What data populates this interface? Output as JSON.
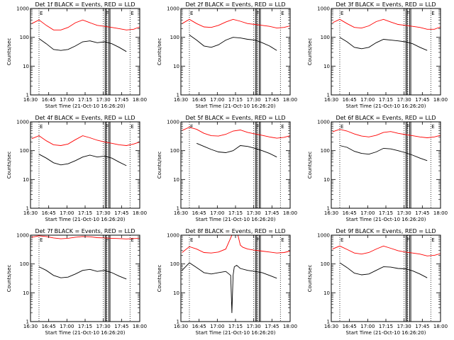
{
  "chart_data": [
    {
      "type": "line",
      "title": "Det 1f BLACK = Events, RED = LLD",
      "xlabel": "Start Time (21-Oct-10 16:26:20)",
      "ylabel": "Counts/sec",
      "yscale": "log",
      "ylim": [
        1,
        1000
      ],
      "xlim": [
        "16:30",
        "18:00"
      ],
      "x_ticks": [
        "16:30",
        "16:45",
        "17:00",
        "17:15",
        "17:30",
        "17:45",
        "18:00"
      ],
      "y_ticks": [
        "1",
        "10",
        "100",
        "1000"
      ],
      "flags": [
        "E",
        "F",
        "E"
      ],
      "series": [
        {
          "color": "#ff0000",
          "x": [
            "16:31",
            "16:37",
            "16:43",
            "16:49",
            "16:55",
            "17:01",
            "17:07",
            "17:13",
            "17:19",
            "17:25",
            "17:31",
            "17:37",
            "17:43",
            "17:49",
            "17:55",
            "18:00"
          ],
          "values": [
            300,
            400,
            260,
            180,
            180,
            220,
            320,
            400,
            320,
            260,
            240,
            220,
            200,
            180,
            190,
            230
          ]
        },
        {
          "color": "#000000",
          "x": [
            "16:37",
            "16:43",
            "16:49",
            "16:55",
            "17:01",
            "17:07",
            "17:13",
            "17:19",
            "17:25",
            "17:31",
            "17:37",
            "17:43",
            "17:49"
          ],
          "values": [
            90,
            60,
            38,
            35,
            38,
            50,
            70,
            75,
            65,
            70,
            60,
            45,
            32
          ]
        }
      ]
    },
    {
      "type": "line",
      "title": "Det 2f BLACK = Events, RED = LLD",
      "xlabel": "Start Time (21-Oct-10 16:26:20)",
      "ylabel": "Counts/sec",
      "yscale": "log",
      "ylim": [
        1,
        1000
      ],
      "xlim": [
        "16:30",
        "18:00"
      ],
      "x_ticks": [
        "16:30",
        "16:45",
        "17:00",
        "17:15",
        "17:30",
        "17:45",
        "18:00"
      ],
      "y_ticks": [
        "1",
        "10",
        "100",
        "1000"
      ],
      "flags": [
        "E",
        "F",
        "E"
      ],
      "series": [
        {
          "color": "#ff0000",
          "x": [
            "16:31",
            "16:37",
            "16:43",
            "16:49",
            "16:55",
            "17:01",
            "17:07",
            "17:13",
            "17:19",
            "17:25",
            "17:31",
            "17:37",
            "17:43",
            "17:49",
            "17:55",
            "18:00"
          ],
          "values": [
            300,
            420,
            300,
            230,
            220,
            260,
            340,
            420,
            360,
            300,
            280,
            260,
            240,
            210,
            220,
            250
          ]
        },
        {
          "color": "#000000",
          "x": [
            "16:37",
            "16:43",
            "16:49",
            "16:55",
            "17:01",
            "17:07",
            "17:13",
            "17:19",
            "17:25",
            "17:31",
            "17:37",
            "17:43",
            "17:49"
          ],
          "values": [
            120,
            80,
            50,
            45,
            55,
            80,
            100,
            95,
            85,
            80,
            65,
            50,
            35
          ]
        }
      ]
    },
    {
      "type": "line",
      "title": "Det 3f BLACK = Events, RED = LLD",
      "xlabel": "Start Time (21-Oct-10 16:26:20)",
      "ylabel": "Counts/sec",
      "yscale": "log",
      "ylim": [
        1,
        1000
      ],
      "xlim": [
        "16:30",
        "18:00"
      ],
      "x_ticks": [
        "16:30",
        "16:45",
        "17:00",
        "17:15",
        "17:30",
        "17:45",
        "18:00"
      ],
      "y_ticks": [
        "1",
        "10",
        "100",
        "1000"
      ],
      "flags": [
        "E",
        "F",
        "E"
      ],
      "series": [
        {
          "color": "#ff0000",
          "x": [
            "16:31",
            "16:37",
            "16:43",
            "16:49",
            "16:55",
            "17:01",
            "17:07",
            "17:13",
            "17:19",
            "17:25",
            "17:31",
            "17:37",
            "17:43",
            "17:49",
            "17:55",
            "18:00"
          ],
          "values": [
            320,
            420,
            300,
            220,
            210,
            250,
            350,
            420,
            340,
            280,
            260,
            240,
            220,
            190,
            190,
            230
          ]
        },
        {
          "color": "#000000",
          "x": [
            "16:37",
            "16:43",
            "16:49",
            "16:55",
            "17:01",
            "17:07",
            "17:13",
            "17:19",
            "17:25",
            "17:31",
            "17:37",
            "17:43",
            "17:49"
          ],
          "values": [
            100,
            70,
            45,
            40,
            45,
            65,
            85,
            80,
            75,
            70,
            60,
            45,
            35
          ]
        }
      ]
    },
    {
      "type": "line",
      "title": "Det 4f BLACK = Events, RED = LLD",
      "xlabel": "Start Time (21-Oct-10 16:26:20)",
      "ylabel": "Counts/sec",
      "yscale": "log",
      "ylim": [
        1,
        1000
      ],
      "xlim": [
        "16:30",
        "18:00"
      ],
      "x_ticks": [
        "16:30",
        "16:45",
        "17:00",
        "17:15",
        "17:30",
        "17:45",
        "18:00"
      ],
      "y_ticks": [
        "1",
        "10",
        "100",
        "1000"
      ],
      "flags": [
        "E",
        "F",
        "E"
      ],
      "series": [
        {
          "color": "#ff0000",
          "x": [
            "16:31",
            "16:37",
            "16:43",
            "16:49",
            "16:55",
            "17:01",
            "17:07",
            "17:13",
            "17:19",
            "17:25",
            "17:31",
            "17:37",
            "17:43",
            "17:49",
            "17:55",
            "18:00"
          ],
          "values": [
            260,
            330,
            220,
            160,
            150,
            170,
            240,
            330,
            280,
            230,
            200,
            180,
            160,
            150,
            170,
            200
          ]
        },
        {
          "color": "#000000",
          "x": [
            "16:37",
            "16:43",
            "16:49",
            "16:55",
            "17:01",
            "17:07",
            "17:13",
            "17:19",
            "17:25",
            "17:31",
            "17:37",
            "17:43",
            "17:49"
          ],
          "values": [
            75,
            55,
            38,
            32,
            35,
            45,
            60,
            70,
            60,
            65,
            55,
            40,
            30
          ]
        }
      ]
    },
    {
      "type": "line",
      "title": "Det 5f BLACK = Events, RED = LLD",
      "xlabel": "Start Time (21-Oct-10 16:26:20)",
      "ylabel": "Counts/sec",
      "yscale": "log",
      "ylim": [
        1,
        1000
      ],
      "xlim": [
        "16:30",
        "18:00"
      ],
      "x_ticks": [
        "16:30",
        "16:45",
        "17:00",
        "17:15",
        "17:30",
        "17:45",
        "18:00"
      ],
      "y_ticks": [
        "1",
        "10",
        "100",
        "1000"
      ],
      "flags": [
        "E",
        "F",
        "E"
      ],
      "series": [
        {
          "color": "#ff0000",
          "x": [
            "16:31",
            "16:37",
            "16:43",
            "16:49",
            "16:55",
            "17:01",
            "17:07",
            "17:13",
            "17:19",
            "17:25",
            "17:31",
            "17:37",
            "17:43",
            "17:49",
            "17:55",
            "18:00"
          ],
          "values": [
            500,
            650,
            550,
            400,
            330,
            320,
            370,
            480,
            520,
            430,
            380,
            340,
            300,
            270,
            290,
            330
          ]
        },
        {
          "color": "#000000",
          "x": [
            "16:43",
            "16:49",
            "16:55",
            "17:01",
            "17:07",
            "17:13",
            "17:19",
            "17:25",
            "17:31",
            "17:37",
            "17:43",
            "17:49"
          ],
          "values": [
            180,
            140,
            110,
            90,
            85,
            100,
            150,
            140,
            120,
            100,
            80,
            60
          ]
        }
      ]
    },
    {
      "type": "line",
      "title": "Det 6f BLACK = Events, RED = LLD",
      "xlabel": "Start Time (21-Oct-10 16:26:20)",
      "ylabel": "Counts/sec",
      "yscale": "log",
      "ylim": [
        1,
        1000
      ],
      "xlim": [
        "16:30",
        "18:00"
      ],
      "x_ticks": [
        "16:30",
        "16:45",
        "17:00",
        "17:15",
        "17:30",
        "17:45",
        "18:00"
      ],
      "y_ticks": [
        "1",
        "10",
        "100",
        "1000"
      ],
      "flags": [
        "E",
        "F",
        "E"
      ],
      "series": [
        {
          "color": "#ff0000",
          "x": [
            "16:31",
            "16:37",
            "16:43",
            "16:49",
            "16:55",
            "17:01",
            "17:07",
            "17:13",
            "17:19",
            "17:25",
            "17:31",
            "17:37",
            "17:43",
            "17:49",
            "17:55",
            "18:00"
          ],
          "values": [
            450,
            550,
            480,
            380,
            320,
            300,
            340,
            430,
            460,
            400,
            360,
            330,
            300,
            280,
            300,
            340
          ]
        },
        {
          "color": "#000000",
          "x": [
            "16:37",
            "16:43",
            "16:49",
            "16:55",
            "17:01",
            "17:07",
            "17:13",
            "17:19",
            "17:25",
            "17:31",
            "17:37",
            "17:43",
            "17:49"
          ],
          "values": [
            150,
            130,
            95,
            80,
            75,
            90,
            120,
            115,
            100,
            85,
            70,
            55,
            45
          ]
        }
      ]
    },
    {
      "type": "line",
      "title": "Det 7f BLACK = Events, RED = LLD",
      "xlabel": "Start Time (21-Oct-10 16:26:20)",
      "ylabel": "Counts/sec",
      "yscale": "log",
      "ylim": [
        1,
        1000
      ],
      "xlim": [
        "16:30",
        "18:00"
      ],
      "x_ticks": [
        "16:30",
        "16:45",
        "17:00",
        "17:15",
        "17:30",
        "17:45",
        "18:00"
      ],
      "y_ticks": [
        "1",
        "10",
        "100",
        "1000"
      ],
      "flags": [
        "E",
        "F",
        "E"
      ],
      "series": [
        {
          "color": "#ff0000",
          "x": [
            "16:31",
            "16:37",
            "16:43",
            "16:49",
            "16:55",
            "17:01",
            "17:07",
            "17:13",
            "17:19",
            "17:25",
            "17:31",
            "17:37",
            "17:43",
            "17:49",
            "17:55",
            "18:00"
          ],
          "values": [
            850,
            950,
            900,
            800,
            750,
            780,
            850,
            900,
            880,
            820,
            800,
            780,
            760,
            740,
            760,
            780
          ]
        },
        {
          "color": "#000000",
          "x": [
            "16:37",
            "16:43",
            "16:49",
            "16:55",
            "17:01",
            "17:07",
            "17:13",
            "17:19",
            "17:25",
            "17:31",
            "17:37",
            "17:43",
            "17:49"
          ],
          "values": [
            80,
            60,
            40,
            33,
            35,
            45,
            60,
            65,
            55,
            60,
            50,
            38,
            30
          ]
        }
      ]
    },
    {
      "type": "line",
      "title": "Det 8f BLACK = Events, RED = LLD",
      "xlabel": "Start Time (21-Oct-10 16:26:20)",
      "ylabel": "Counts/sec",
      "yscale": "log",
      "ylim": [
        1,
        1000
      ],
      "xlim": [
        "16:30",
        "18:00"
      ],
      "x_ticks": [
        "16:30",
        "16:45",
        "17:00",
        "17:15",
        "17:30",
        "17:45",
        "18:00"
      ],
      "y_ticks": [
        "1",
        "10",
        "100",
        "1000"
      ],
      "flags": [
        "E",
        "F",
        "E"
      ],
      "series": [
        {
          "color": "#ff0000",
          "x": [
            "16:31",
            "16:37",
            "16:43",
            "16:49",
            "16:55",
            "17:01",
            "17:07",
            "17:12",
            "17:14",
            "17:17",
            "17:19",
            "17:21",
            "17:25",
            "17:31",
            "17:37",
            "17:43",
            "17:49",
            "17:55",
            "18:00"
          ],
          "values": [
            250,
            400,
            330,
            250,
            240,
            260,
            330,
            1000,
            1000,
            1000,
            450,
            380,
            330,
            300,
            280,
            260,
            240,
            250,
            280
          ]
        },
        {
          "color": "#000000",
          "x": [
            "16:31",
            "16:37",
            "16:43",
            "16:49",
            "16:55",
            "17:01",
            "17:07",
            "17:11",
            "17:12",
            "17:13",
            "17:14",
            "17:16",
            "17:19",
            "17:25",
            "17:31",
            "17:37",
            "17:43",
            "17:49"
          ],
          "values": [
            60,
            110,
            75,
            50,
            45,
            50,
            55,
            40,
            2,
            40,
            80,
            90,
            70,
            60,
            55,
            50,
            40,
            32
          ]
        }
      ]
    },
    {
      "type": "line",
      "title": "Det 9f BLACK = Events, RED = LLD",
      "xlabel": "Start Time (21-Oct-10 16:26:20)",
      "ylabel": "Counts/sec",
      "yscale": "log",
      "ylim": [
        1,
        1000
      ],
      "xlim": [
        "16:30",
        "18:00"
      ],
      "x_ticks": [
        "16:30",
        "16:45",
        "17:00",
        "17:15",
        "17:30",
        "17:45",
        "18:00"
      ],
      "y_ticks": [
        "1",
        "10",
        "100",
        "1000"
      ],
      "flags": [
        "E",
        "F",
        "E"
      ],
      "series": [
        {
          "color": "#ff0000",
          "x": [
            "16:31",
            "16:37",
            "16:43",
            "16:49",
            "16:55",
            "17:01",
            "17:07",
            "17:13",
            "17:19",
            "17:25",
            "17:31",
            "17:37",
            "17:43",
            "17:49",
            "17:55",
            "18:00"
          ],
          "values": [
            330,
            420,
            320,
            240,
            220,
            250,
            330,
            420,
            350,
            290,
            260,
            240,
            220,
            190,
            200,
            230
          ]
        },
        {
          "color": "#000000",
          "x": [
            "16:37",
            "16:43",
            "16:49",
            "16:55",
            "17:01",
            "17:07",
            "17:13",
            "17:19",
            "17:25",
            "17:31",
            "17:37",
            "17:43",
            "17:49"
          ],
          "values": [
            110,
            75,
            48,
            42,
            45,
            60,
            80,
            78,
            70,
            68,
            58,
            45,
            33
          ]
        }
      ]
    }
  ]
}
